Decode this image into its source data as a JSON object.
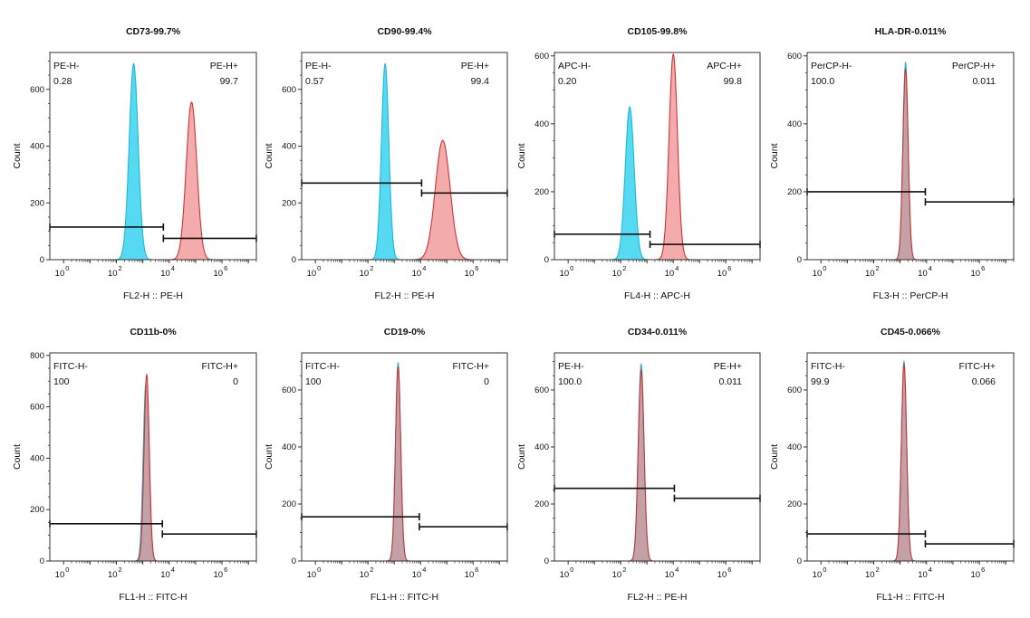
{
  "colors": {
    "negative_fill": "#4dd8f0",
    "negative_line": "#1fb8d6",
    "positive_fill": "#ee8a8a",
    "positive_line": "#cc3535",
    "overlap_fill": "#8fa9c8",
    "frame": "#333333"
  },
  "chart_data": [
    {
      "type": "histogram",
      "title": "CD73-99.7%",
      "xlabel": "FL2-H :: PE-H",
      "ylabel": "Count",
      "x_scale": "log",
      "xlim": [
        0.3,
        20000000
      ],
      "ylim": [
        0,
        730
      ],
      "yticks": [
        0,
        200,
        400,
        600
      ],
      "xticks": [
        {
          "base": "10",
          "exp": "0",
          "value": 1
        },
        {
          "base": "10",
          "exp": "2",
          "value": 100
        },
        {
          "base": "10",
          "exp": "4",
          "value": 10000
        },
        {
          "base": "10",
          "exp": "6",
          "value": 1000000
        }
      ],
      "gate_neg": {
        "label": "PE-H-",
        "value": "0.28",
        "x_range": [
          0.3,
          6000
        ],
        "y": 115
      },
      "gate_pos": {
        "label": "PE-H+",
        "value": "99.7",
        "x_range": [
          6000,
          20000000
        ],
        "y": 75
      },
      "series": [
        {
          "role": "negative",
          "shape": "gaussian",
          "peak_x": 450,
          "peak_count": 690,
          "width_log10": 0.17
        },
        {
          "role": "positive",
          "shape": "gaussian",
          "peak_x": 70000,
          "peak_count": 555,
          "width_log10": 0.2
        }
      ]
    },
    {
      "type": "histogram",
      "title": "CD90-99.4%",
      "xlabel": "FL2-H :: PE-H",
      "ylabel": "Count",
      "x_scale": "log",
      "xlim": [
        0.3,
        20000000
      ],
      "ylim": [
        0,
        730
      ],
      "yticks": [
        0,
        200,
        400,
        600
      ],
      "xticks": [
        {
          "base": "10",
          "exp": "0",
          "value": 1
        },
        {
          "base": "10",
          "exp": "2",
          "value": 100
        },
        {
          "base": "10",
          "exp": "4",
          "value": 10000
        },
        {
          "base": "10",
          "exp": "6",
          "value": 1000000
        }
      ],
      "gate_neg": {
        "label": "PE-H-",
        "value": "0.57",
        "x_range": [
          0.3,
          11000
        ],
        "y": 270
      },
      "gate_pos": {
        "label": "PE-H+",
        "value": "99.4",
        "x_range": [
          11000,
          20000000
        ],
        "y": 235
      },
      "series": [
        {
          "role": "negative",
          "shape": "gaussian",
          "peak_x": 450,
          "peak_count": 690,
          "width_log10": 0.14
        },
        {
          "role": "positive",
          "shape": "gaussian",
          "peak_x": 70000,
          "peak_count": 420,
          "width_log10": 0.28
        }
      ]
    },
    {
      "type": "histogram",
      "title": "CD105-99.8%",
      "xlabel": "FL4-H :: APC-H",
      "ylabel": "Count",
      "x_scale": "log",
      "xlim": [
        0.3,
        20000000
      ],
      "ylim": [
        0,
        610
      ],
      "yticks": [
        0,
        200,
        400,
        600
      ],
      "xticks": [
        {
          "base": "10",
          "exp": "0",
          "value": 1
        },
        {
          "base": "10",
          "exp": "2",
          "value": 100
        },
        {
          "base": "10",
          "exp": "4",
          "value": 10000
        },
        {
          "base": "10",
          "exp": "6",
          "value": 1000000
        }
      ],
      "gate_neg": {
        "label": "APC-H-",
        "value": "0.20",
        "x_range": [
          0.3,
          1300
        ],
        "y": 75
      },
      "gate_pos": {
        "label": "APC-H+",
        "value": "99.8",
        "x_range": [
          1300,
          20000000
        ],
        "y": 45
      },
      "series": [
        {
          "role": "negative",
          "shape": "gaussian",
          "peak_x": 220,
          "peak_count": 450,
          "width_log10": 0.17
        },
        {
          "role": "positive",
          "shape": "gaussian",
          "peak_x": 10000,
          "peak_count": 605,
          "width_log10": 0.16
        }
      ]
    },
    {
      "type": "histogram",
      "title": "HLA-DR-0.011%",
      "xlabel": "FL3-H :: PerCP-H",
      "ylabel": "Count",
      "x_scale": "log",
      "xlim": [
        0.3,
        20000000
      ],
      "ylim": [
        0,
        610
      ],
      "yticks": [
        0,
        200,
        400,
        600
      ],
      "xticks": [
        {
          "base": "10",
          "exp": "0",
          "value": 1
        },
        {
          "base": "10",
          "exp": "2",
          "value": 100
        },
        {
          "base": "10",
          "exp": "4",
          "value": 10000
        },
        {
          "base": "10",
          "exp": "6",
          "value": 1000000
        }
      ],
      "gate_neg": {
        "label": "PerCP-H-",
        "value": "100.0",
        "x_range": [
          0.3,
          9000
        ],
        "y": 200
      },
      "gate_pos": {
        "label": "PerCP-H+",
        "value": "0.011",
        "x_range": [
          9000,
          20000000
        ],
        "y": 170
      },
      "series": [
        {
          "role": "negative",
          "shape": "gaussian",
          "peak_x": 1600,
          "peak_count": 580,
          "width_log10": 0.1
        },
        {
          "role": "positive",
          "shape": "gaussian",
          "peak_x": 1600,
          "peak_count": 560,
          "width_log10": 0.1
        }
      ]
    },
    {
      "type": "histogram",
      "title": "CD11b-0%",
      "xlabel": "FL1-H :: FITC-H",
      "ylabel": "Count",
      "x_scale": "log",
      "xlim": [
        0.3,
        20000000
      ],
      "ylim": [
        0,
        810
      ],
      "yticks": [
        0,
        200,
        400,
        600,
        800
      ],
      "xticks": [
        {
          "base": "10",
          "exp": "0",
          "value": 1
        },
        {
          "base": "10",
          "exp": "2",
          "value": 100
        },
        {
          "base": "10",
          "exp": "4",
          "value": 10000
        },
        {
          "base": "10",
          "exp": "6",
          "value": 1000000
        }
      ],
      "gate_neg": {
        "label": "FITC-H-",
        "value": "100",
        "x_range": [
          0.3,
          5500
        ],
        "y": 145
      },
      "gate_pos": {
        "label": "FITC-H+",
        "value": "0",
        "x_range": [
          5500,
          20000000
        ],
        "y": 105
      },
      "series": [
        {
          "role": "negative",
          "shape": "gaussian",
          "peak_x": 1300,
          "peak_count": 690,
          "width_log10": 0.1
        },
        {
          "role": "positive",
          "shape": "gaussian",
          "peak_x": 1400,
          "peak_count": 725,
          "width_log10": 0.1
        }
      ]
    },
    {
      "type": "histogram",
      "title": "CD19-0%",
      "xlabel": "FL1-H :: FITC-H",
      "ylabel": "Count",
      "x_scale": "log",
      "xlim": [
        0.3,
        20000000
      ],
      "ylim": [
        0,
        730
      ],
      "yticks": [
        0,
        200,
        400,
        600
      ],
      "xticks": [
        {
          "base": "10",
          "exp": "0",
          "value": 1
        },
        {
          "base": "10",
          "exp": "2",
          "value": 100
        },
        {
          "base": "10",
          "exp": "4",
          "value": 10000
        },
        {
          "base": "10",
          "exp": "6",
          "value": 1000000
        }
      ],
      "gate_neg": {
        "label": "FITC-H-",
        "value": "100",
        "x_range": [
          0.3,
          9000
        ],
        "y": 155
      },
      "gate_pos": {
        "label": "FITC-H+",
        "value": "0",
        "x_range": [
          9000,
          20000000
        ],
        "y": 120
      },
      "series": [
        {
          "role": "negative",
          "shape": "gaussian",
          "peak_x": 1400,
          "peak_count": 695,
          "width_log10": 0.1
        },
        {
          "role": "positive",
          "shape": "gaussian",
          "peak_x": 1400,
          "peak_count": 680,
          "width_log10": 0.1
        }
      ]
    },
    {
      "type": "histogram",
      "title": "CD34-0.011%",
      "xlabel": "FL2-H :: PE-H",
      "ylabel": "Count",
      "x_scale": "log",
      "xlim": [
        0.3,
        20000000
      ],
      "ylim": [
        0,
        730
      ],
      "yticks": [
        0,
        200,
        400,
        600
      ],
      "xticks": [
        {
          "base": "10",
          "exp": "0",
          "value": 1
        },
        {
          "base": "10",
          "exp": "2",
          "value": 100
        },
        {
          "base": "10",
          "exp": "4",
          "value": 10000
        },
        {
          "base": "10",
          "exp": "6",
          "value": 1000000
        }
      ],
      "gate_neg": {
        "label": "PE-H-",
        "value": "100.0",
        "x_range": [
          0.3,
          11000
        ],
        "y": 255
      },
      "gate_pos": {
        "label": "PE-H+",
        "value": "0.011",
        "x_range": [
          11000,
          20000000
        ],
        "y": 220
      },
      "series": [
        {
          "role": "negative",
          "shape": "gaussian",
          "peak_x": 600,
          "peak_count": 690,
          "width_log10": 0.11
        },
        {
          "role": "positive",
          "shape": "gaussian",
          "peak_x": 600,
          "peak_count": 670,
          "width_log10": 0.11
        }
      ]
    },
    {
      "type": "histogram",
      "title": "CD45-0.066%",
      "xlabel": "FL1-H :: FITC-H",
      "ylabel": "Count",
      "x_scale": "log",
      "xlim": [
        0.3,
        20000000
      ],
      "ylim": [
        0,
        730
      ],
      "yticks": [
        0,
        200,
        400,
        600
      ],
      "xticks": [
        {
          "base": "10",
          "exp": "0",
          "value": 1
        },
        {
          "base": "10",
          "exp": "2",
          "value": 100
        },
        {
          "base": "10",
          "exp": "4",
          "value": 10000
        },
        {
          "base": "10",
          "exp": "6",
          "value": 1000000
        }
      ],
      "gate_neg": {
        "label": "FITC-H-",
        "value": "99.9",
        "x_range": [
          0.3,
          9000
        ],
        "y": 95
      },
      "gate_pos": {
        "label": "FITC-H+",
        "value": "0.066",
        "x_range": [
          9000,
          20000000
        ],
        "y": 60
      },
      "series": [
        {
          "role": "negative",
          "shape": "gaussian",
          "peak_x": 1400,
          "peak_count": 700,
          "width_log10": 0.1
        },
        {
          "role": "positive",
          "shape": "gaussian",
          "peak_x": 1400,
          "peak_count": 690,
          "width_log10": 0.1
        }
      ]
    }
  ]
}
